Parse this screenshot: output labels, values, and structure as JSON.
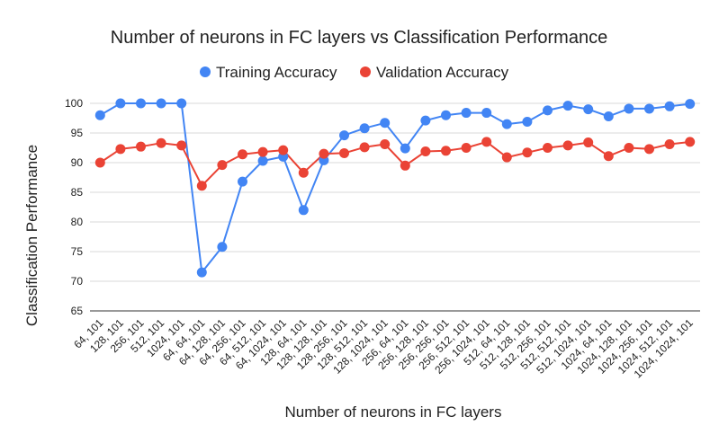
{
  "chart_data": {
    "type": "line",
    "title": "Number of neurons in FC layers vs Classification Performance",
    "xlabel": "Number of neurons in FC layers",
    "ylabel": "Classification Performance",
    "ylim": [
      65,
      100
    ],
    "yticks": [
      65,
      70,
      75,
      80,
      85,
      90,
      95,
      100
    ],
    "grid": true,
    "legend_position": "top",
    "categories": [
      "64, 101",
      "128, 101",
      "256, 101",
      "512, 101",
      "1024, 101",
      "64, 64, 101",
      "64, 128, 101",
      "64, 256, 101",
      "64, 512, 101",
      "64, 1024, 101",
      "128, 64, 101",
      "128, 128, 101",
      "128, 256, 101",
      "128, 512, 101",
      "128, 1024, 101",
      "256, 64, 101",
      "256, 128, 101",
      "256, 256, 101",
      "256, 512, 101",
      "256, 1024, 101",
      "512, 64, 101",
      "512, 128, 101",
      "512, 256, 101",
      "512, 512, 101",
      "512, 1024, 101",
      "1024, 64, 101",
      "1024, 128, 101",
      "1024, 256, 101",
      "1024, 512, 101",
      "1024, 1024, 101"
    ],
    "series": [
      {
        "name": "Training Accuracy",
        "color": "#4285F4",
        "values": [
          98,
          100,
          100,
          100,
          100,
          71.5,
          75.8,
          86.8,
          90.3,
          91,
          82,
          90.4,
          94.6,
          95.8,
          96.7,
          92.4,
          97.1,
          98,
          98.4,
          98.4,
          96.5,
          96.9,
          98.8,
          99.6,
          99,
          97.8,
          99.1,
          99.1,
          99.5,
          99.9
        ]
      },
      {
        "name": "Validation Accuracy",
        "color": "#EA4335",
        "values": [
          90,
          92.3,
          92.7,
          93.3,
          92.9,
          86.1,
          89.6,
          91.4,
          91.8,
          92.1,
          88.3,
          91.5,
          91.6,
          92.6,
          93.1,
          89.5,
          91.9,
          92,
          92.5,
          93.5,
          90.9,
          91.7,
          92.5,
          92.9,
          93.4,
          91.1,
          92.5,
          92.3,
          93.1,
          93.5
        ]
      }
    ]
  }
}
